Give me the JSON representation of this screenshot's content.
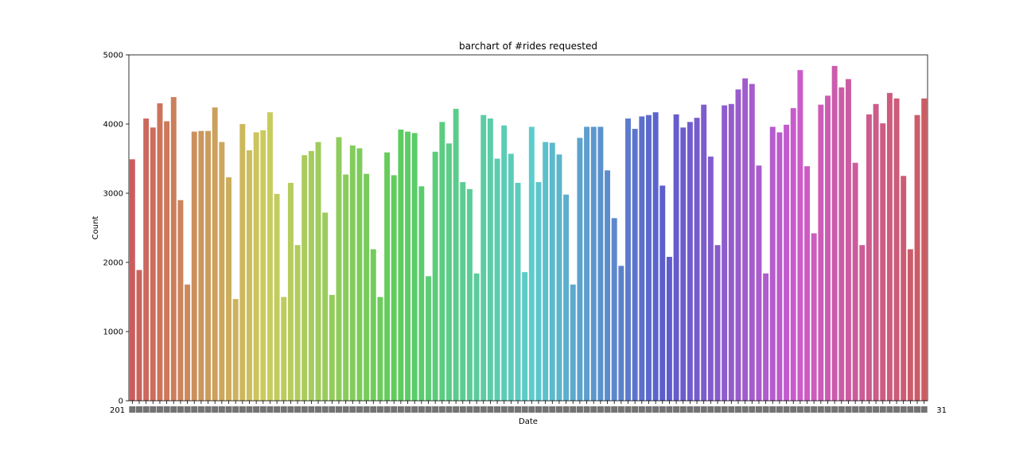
{
  "chart_data": {
    "type": "bar",
    "title": "barchart of #rides requested",
    "xlabel": "Date",
    "ylabel": "Count",
    "ylim": [
      0,
      5000
    ],
    "yticks": [
      0,
      1000,
      2000,
      3000,
      4000,
      5000
    ],
    "grid": false,
    "legend": "none",
    "x_tick_labels_overlapping": true,
    "x_tick_label_first_visible": "201",
    "x_tick_label_last_visible": "31",
    "values": [
      3490,
      1890,
      4080,
      3950,
      4300,
      4040,
      4390,
      2900,
      1680,
      3890,
      3900,
      3900,
      4240,
      3740,
      3230,
      1470,
      4000,
      3620,
      3880,
      3910,
      4170,
      2990,
      1500,
      3150,
      2250,
      3550,
      3610,
      3740,
      2720,
      1530,
      3810,
      3270,
      3690,
      3650,
      3280,
      2190,
      1500,
      3590,
      3260,
      3920,
      3890,
      3870,
      3100,
      1800,
      3600,
      4030,
      3720,
      4220,
      3160,
      3060,
      1840,
      4130,
      4080,
      3500,
      3980,
      3570,
      3150,
      1860,
      3960,
      3160,
      3740,
      3730,
      3560,
      2980,
      1680,
      3800,
      3960,
      3960,
      3960,
      3330,
      2640,
      1950,
      4080,
      3930,
      4110,
      4130,
      4170,
      3110,
      2080,
      4140,
      3950,
      4030,
      4090,
      4280,
      3530,
      2250,
      4270,
      4290,
      4500,
      4660,
      4580,
      3400,
      1840,
      3960,
      3880,
      3990,
      4230,
      4780,
      3390,
      2420,
      4280,
      4410,
      4840,
      4530,
      4650,
      3440,
      2250,
      4140,
      4290,
      4010,
      4450,
      4370,
      3250,
      2190,
      4130,
      4370
    ]
  }
}
